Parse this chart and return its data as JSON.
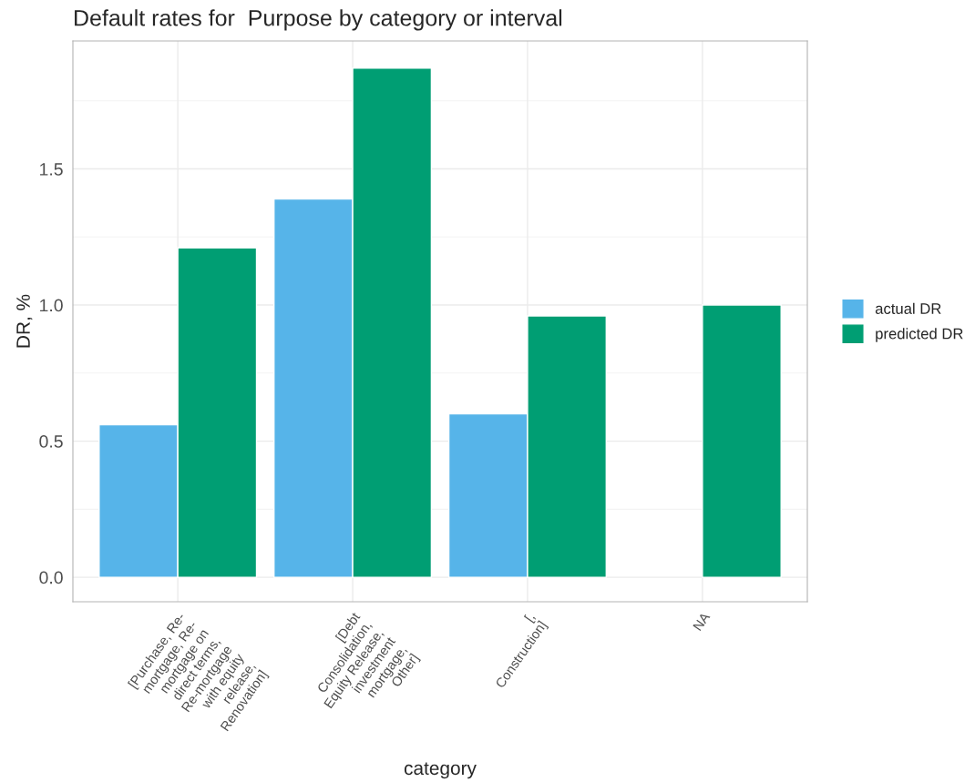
{
  "chart_data": {
    "type": "bar",
    "title": "Default rates for  Purpose by category or interval",
    "xlabel": "category",
    "ylabel": "DR, %",
    "categories": [
      "[Purchase, Re-\nmortgage, Re-\nmortgage on\ndirect terms,\nRe-mortgage\nwith equity\nrelease,\nRenovation]",
      "[Debt\nConsolidation,\nEquity Release,\ninvestment\nmortgage,\nOther]",
      "[,\nConstruction]",
      "NA"
    ],
    "series": [
      {
        "name": "actual DR",
        "color": "#56b4e9",
        "values": [
          0.56,
          1.39,
          0.6,
          null
        ]
      },
      {
        "name": "predicted DR",
        "color": "#009e73",
        "values": [
          1.21,
          1.87,
          0.96,
          1.0
        ]
      }
    ],
    "ylim": [
      -0.09,
      1.97
    ],
    "yticks": [
      {
        "value": 0.0,
        "label": "0.0"
      },
      {
        "value": 0.5,
        "label": "0.5"
      },
      {
        "value": 1.0,
        "label": "1.0"
      },
      {
        "value": 1.5,
        "label": "1.5"
      }
    ],
    "grid": true,
    "legend": "right"
  }
}
